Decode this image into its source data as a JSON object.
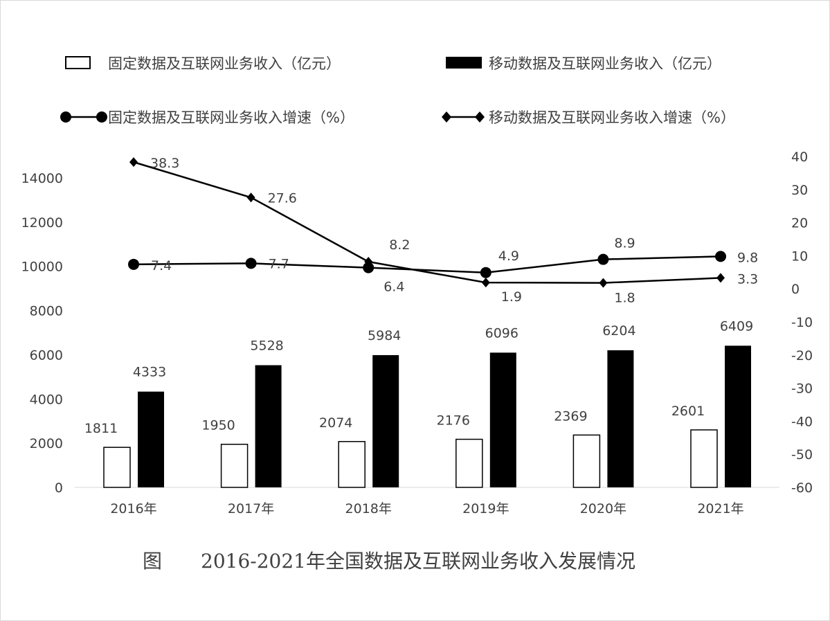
{
  "chart_data": {
    "type": "bar+line",
    "title": "图　　2016-2021年全国数据及互联网业务收入发展情况",
    "categories": [
      "2016年",
      "2017年",
      "2018年",
      "2019年",
      "2020年",
      "2021年"
    ],
    "y_left": {
      "range": [
        0,
        14000
      ],
      "ticks": [
        0,
        2000,
        4000,
        6000,
        8000,
        10000,
        12000,
        14000
      ]
    },
    "y_right": {
      "range": [
        -60,
        40
      ],
      "ticks": [
        -60,
        -50,
        -40,
        -30,
        -20,
        -10,
        0,
        10,
        20,
        30,
        40
      ]
    },
    "grid": false,
    "legend_position": "top",
    "series": [
      {
        "name": "固定数据及互联网业务收入（亿元）",
        "type": "bar",
        "axis": "left",
        "style": "hollow",
        "color": "#000000",
        "values": [
          1811,
          1950,
          2074,
          2176,
          2369,
          2601
        ]
      },
      {
        "name": "移动数据及互联网业务收入（亿元）",
        "type": "bar",
        "axis": "left",
        "style": "filled",
        "color": "#000000",
        "values": [
          4333,
          5528,
          5984,
          6096,
          6204,
          6409
        ]
      },
      {
        "name": "固定数据及互联网业务收入增速（%）",
        "type": "line",
        "axis": "right",
        "marker": "circle",
        "color": "#000000",
        "values": [
          7.4,
          7.7,
          6.4,
          4.9,
          8.9,
          9.8
        ]
      },
      {
        "name": "移动数据及互联网业务收入增速（%）",
        "type": "line",
        "axis": "right",
        "marker": "diamond",
        "color": "#000000",
        "values": [
          38.3,
          27.6,
          8.2,
          1.9,
          1.8,
          3.3
        ]
      }
    ]
  }
}
